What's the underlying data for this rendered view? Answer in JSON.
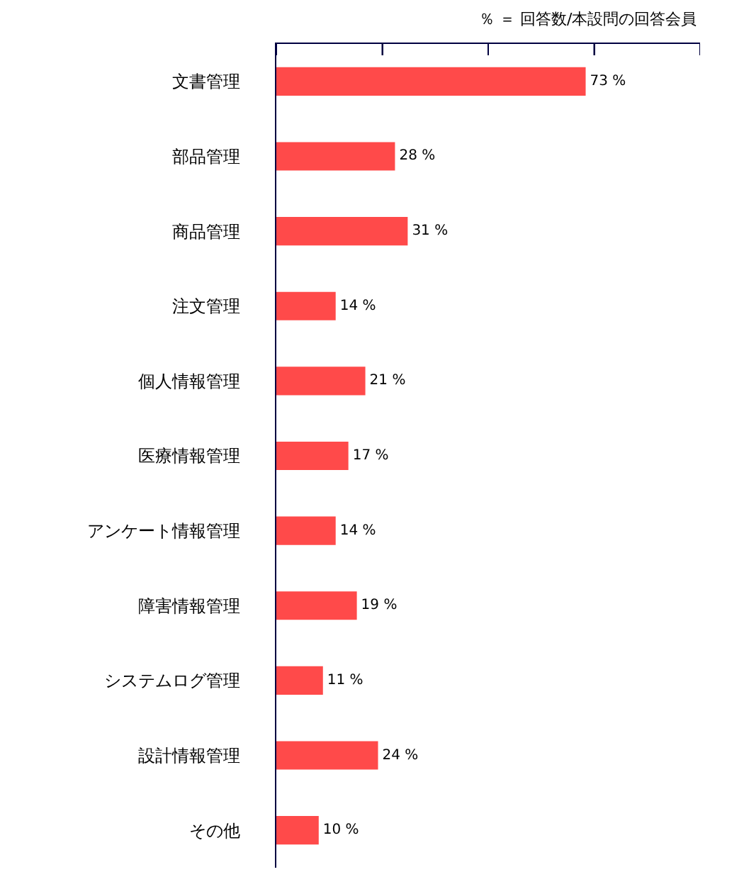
{
  "chart_data": {
    "type": "bar",
    "orientation": "horizontal",
    "annotations": [
      "％ ＝ 回答数/本設問の回答会員"
    ],
    "categories": [
      "文書管理",
      "部品管理",
      "商品管理",
      "注文管理",
      "個人情報管理",
      "医療情報管理",
      "アンケート情報管理",
      "障害情報管理",
      "システムログ管理",
      "設計情報管理",
      "その他"
    ],
    "values": [
      73,
      28,
      31,
      14,
      21,
      17,
      14,
      19,
      11,
      24,
      10
    ],
    "value_labels": [
      "73 %",
      "28 %",
      "31 %",
      "14 %",
      "21 %",
      "17 %",
      "14 %",
      "19 %",
      "11 %",
      "24 %",
      "10 %"
    ],
    "color": "#ff4a4a",
    "xlim": [
      0,
      100
    ],
    "xticks": [
      {
        "value": 0,
        "label": null
      },
      {
        "value": 25,
        "label": null
      },
      {
        "value": 50,
        "label": null
      },
      {
        "value": 75,
        "label": null
      },
      {
        "value": 100,
        "label": null
      }
    ],
    "tick_labels": "y"
  }
}
